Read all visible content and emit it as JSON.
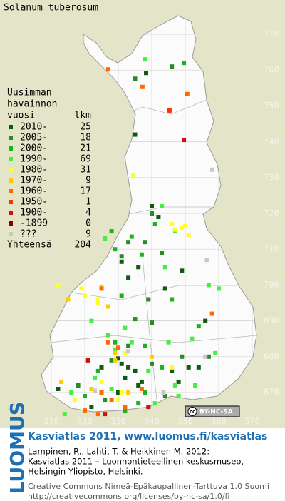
{
  "title": "Solanum tuberosum",
  "axes": {
    "xticks": [
      310,
      320,
      330,
      340,
      350,
      360,
      370
    ],
    "yticks": [
      670,
      680,
      690,
      700,
      710,
      720,
      730,
      740,
      750,
      760,
      770
    ]
  },
  "legend": {
    "heading": [
      "Uusimman",
      "havainnon"
    ],
    "col_year": "vuosi",
    "col_count": "lkm",
    "rows": [
      {
        "label": "2010-",
        "count": 25,
        "color": "#0f5a0f",
        "points": [
          [
            338.3,
            759.2
          ],
          [
            335,
            742
          ],
          [
            340,
            722
          ],
          [
            342,
            719
          ],
          [
            331,
            706.5
          ],
          [
            336,
            705
          ],
          [
            333,
            702
          ],
          [
            344,
            699
          ],
          [
            349,
            704
          ],
          [
            356,
            690
          ],
          [
            325,
            677
          ],
          [
            330,
            679.5
          ],
          [
            331,
            678
          ],
          [
            333,
            677
          ],
          [
            335,
            676
          ],
          [
            332,
            674
          ],
          [
            337,
            673
          ],
          [
            336,
            672
          ],
          [
            346,
            676
          ],
          [
            351,
            677
          ],
          [
            354,
            677
          ],
          [
            312,
            671
          ],
          [
            330,
            670
          ],
          [
            348,
            673
          ],
          [
            322,
            666
          ]
        ]
      },
      {
        "label": "2005-",
        "count": 18,
        "color": "#2a8a2a",
        "points": [
          [
            335,
            757.6
          ],
          [
            346,
            761
          ],
          [
            340,
            720
          ],
          [
            333,
            712
          ],
          [
            338,
            712
          ],
          [
            331,
            708
          ],
          [
            343,
            709
          ],
          [
            339,
            696
          ],
          [
            335,
            690.5
          ],
          [
            340,
            689.5
          ],
          [
            333,
            683
          ],
          [
            328,
            679
          ],
          [
            340,
            678
          ],
          [
            349,
            680
          ],
          [
            357,
            680
          ],
          [
            318,
            672
          ],
          [
            326,
            668
          ],
          [
            344,
            669
          ]
        ]
      },
      {
        "label": "2000-",
        "count": 21,
        "color": "#1fb01f",
        "points": [
          [
            349.6,
            762
          ],
          [
            341,
            717
          ],
          [
            328,
            715
          ],
          [
            334,
            713.5
          ],
          [
            329,
            710
          ],
          [
            337,
            708.5
          ],
          [
            331,
            697
          ],
          [
            346,
            696
          ],
          [
            354,
            688.5
          ],
          [
            329,
            684
          ],
          [
            338,
            683
          ],
          [
            324,
            676
          ],
          [
            343,
            677
          ],
          [
            338,
            670
          ],
          [
            320,
            669
          ],
          [
            336,
            667
          ],
          [
            332,
            665
          ]
        ]
      },
      {
        "label": "1990-",
        "count": 69,
        "color": "#44ee44",
        "points": [
          [
            338,
            763
          ],
          [
            343,
            722
          ],
          [
            347,
            715
          ],
          [
            326,
            713
          ],
          [
            344,
            705
          ],
          [
            357,
            700
          ],
          [
            360,
            699
          ],
          [
            322,
            690
          ],
          [
            327,
            686
          ],
          [
            332,
            688
          ],
          [
            334,
            684
          ],
          [
            345,
            684
          ],
          [
            352,
            685
          ],
          [
            359,
            681
          ],
          [
            329,
            682
          ],
          [
            321,
            679
          ],
          [
            339,
            676
          ],
          [
            347,
            672
          ],
          [
            353,
            672
          ],
          [
            323,
            674
          ],
          [
            316,
            670
          ],
          [
            328,
            671
          ],
          [
            341,
            667
          ],
          [
            314,
            664
          ],
          [
            348,
            669
          ]
        ]
      },
      {
        "label": "1980-",
        "count": 31,
        "color": "#ffff22",
        "points": [
          [
            334.5,
            730.6
          ],
          [
            346,
            717
          ],
          [
            347,
            715.5
          ],
          [
            349,
            716
          ],
          [
            351,
            714
          ],
          [
            350,
            716.5
          ],
          [
            312,
            700
          ],
          [
            319,
            699
          ],
          [
            324,
            696
          ],
          [
            324,
            695
          ],
          [
            320,
            697
          ],
          [
            332,
            681
          ],
          [
            325,
            673
          ],
          [
            331,
            670
          ],
          [
            330,
            668
          ],
          [
            317,
            668
          ],
          [
            346,
            677
          ]
        ]
      },
      {
        "label": "1970-",
        "count": 9,
        "color": "#ffcc00",
        "points": [
          [
            315,
            696
          ],
          [
            325,
            699.5
          ],
          [
            327,
            694
          ],
          [
            329,
            681
          ],
          [
            329,
            679
          ],
          [
            322,
            671
          ],
          [
            313,
            673
          ],
          [
            340,
            680
          ],
          [
            333,
            670
          ]
        ]
      },
      {
        "label": "1960-",
        "count": 17,
        "color": "#ff6a00",
        "points": [
          [
            327,
            760.2
          ],
          [
            337.2,
            755.3
          ],
          [
            350.6,
            753.3
          ],
          [
            325,
            699
          ],
          [
            358,
            692
          ],
          [
            327,
            684
          ],
          [
            330,
            682.5
          ],
          [
            328,
            668
          ],
          [
            325,
            670
          ],
          [
            332,
            666
          ],
          [
            320,
            665
          ],
          [
            337,
            671
          ],
          [
            324,
            664
          ]
        ]
      },
      {
        "label": "1950-",
        "count": 1,
        "color": "#ff3300",
        "points": [
          [
            345.3,
            748.7
          ]
        ]
      },
      {
        "label": "1900-",
        "count": 4,
        "color": "#cc1111",
        "points": [
          [
            349.6,
            740.5
          ],
          [
            321,
            679
          ],
          [
            326,
            664
          ],
          [
            339,
            666
          ]
        ]
      },
      {
        "label": "-1899",
        "count": 0,
        "color": "#880000",
        "points": []
      },
      {
        "label": "???",
        "count": 9,
        "color": "#c8c8c8",
        "points": [
          [
            358.1,
            732.2
          ],
          [
            356.5,
            707
          ],
          [
            356,
            680
          ],
          [
            343.5,
            670
          ],
          [
            323,
            670.5
          ],
          [
            333,
            681.5
          ]
        ]
      }
    ],
    "total_label": "Yhteensä",
    "total": 204
  },
  "badge": {
    "icon": "cc",
    "text": "BY-NC-SA"
  },
  "footer": {
    "logo": "LUOMUS",
    "title": "Kasviatlas 2011, www.luomus.fi/kasviatlas",
    "lines": [
      "Lampinen, R., Lahti, T. & Heikkinen M. 2012:",
      "Kasviatlas 2011 – Luonnontieteellinen keskusmuseo,",
      "Helsingin Yliopisto, Helsinki."
    ],
    "license": [
      "Creative Commons Nimeä-Epäkaupallinen-Tarttuva 1.0 Suomi",
      "http://creativecommons.org/licenses/by-nc-sa/1.0/fi"
    ]
  }
}
